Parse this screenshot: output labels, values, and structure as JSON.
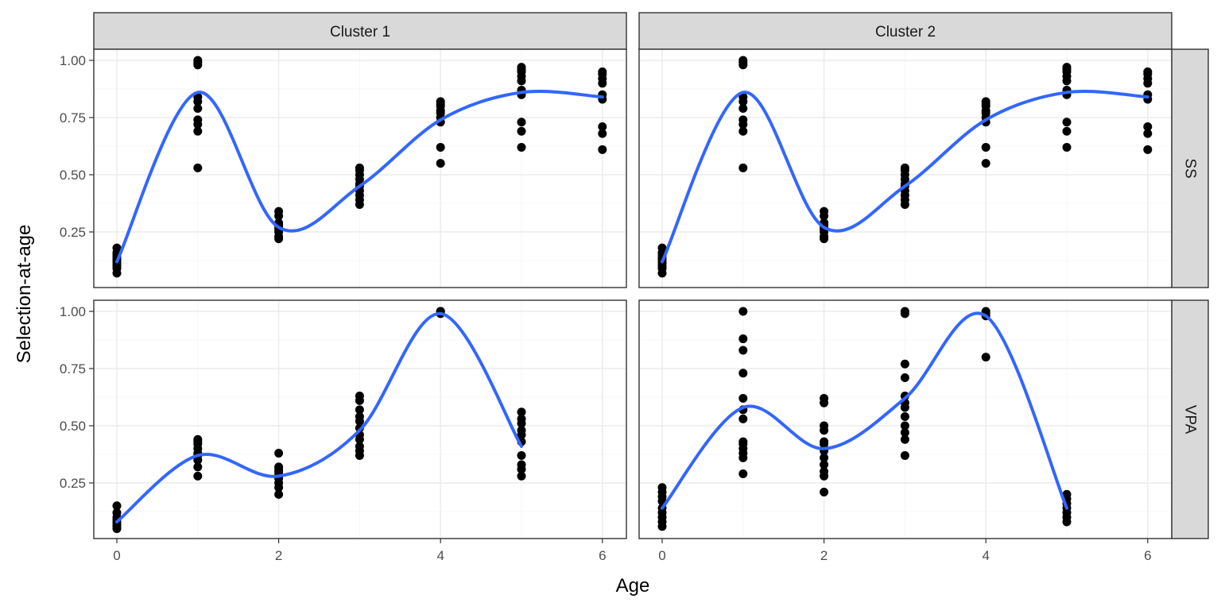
{
  "chart_data": {
    "type": "scatter",
    "xlabel": "Age",
    "ylabel": "Selection-at-age",
    "xlim": [
      0,
      6
    ],
    "ylim": [
      0.0,
      1.05
    ],
    "x_ticks": [
      0,
      2,
      4,
      6
    ],
    "y_ticks": [
      0.25,
      0.5,
      0.75,
      1.0
    ],
    "y_tick_labels": [
      "0.25",
      "0.50",
      "0.75",
      "1.00"
    ],
    "facet_columns": [
      "Cluster 1",
      "Cluster 2"
    ],
    "facet_rows": [
      "SS",
      "VPA"
    ],
    "grid": true,
    "colors": {
      "smooth_line": "#3366ff",
      "points": "#000000",
      "strip": "#d9d9d9"
    },
    "panels": [
      {
        "column": "Cluster 1",
        "row": "SS",
        "points": [
          [
            0,
            0.07
          ],
          [
            0,
            0.09
          ],
          [
            0,
            0.1
          ],
          [
            0,
            0.11
          ],
          [
            0,
            0.12
          ],
          [
            0,
            0.13
          ],
          [
            0,
            0.14
          ],
          [
            0,
            0.15
          ],
          [
            0,
            0.16
          ],
          [
            0,
            0.18
          ],
          [
            1,
            0.53
          ],
          [
            1,
            0.69
          ],
          [
            1,
            0.72
          ],
          [
            1,
            0.74
          ],
          [
            1,
            0.79
          ],
          [
            1,
            0.82
          ],
          [
            1,
            0.84
          ],
          [
            1,
            0.99
          ],
          [
            1,
            1.0
          ],
          [
            1,
            0.98
          ],
          [
            2,
            0.22
          ],
          [
            2,
            0.23
          ],
          [
            2,
            0.25
          ],
          [
            2,
            0.26
          ],
          [
            2,
            0.27
          ],
          [
            2,
            0.28
          ],
          [
            2,
            0.29
          ],
          [
            2,
            0.32
          ],
          [
            2,
            0.34
          ],
          [
            3,
            0.37
          ],
          [
            3,
            0.39
          ],
          [
            3,
            0.41
          ],
          [
            3,
            0.43
          ],
          [
            3,
            0.45
          ],
          [
            3,
            0.46
          ],
          [
            3,
            0.48
          ],
          [
            3,
            0.5
          ],
          [
            3,
            0.52
          ],
          [
            3,
            0.53
          ],
          [
            4,
            0.55
          ],
          [
            4,
            0.62
          ],
          [
            4,
            0.73
          ],
          [
            4,
            0.75
          ],
          [
            4,
            0.77
          ],
          [
            4,
            0.78
          ],
          [
            4,
            0.8
          ],
          [
            4,
            0.81
          ],
          [
            4,
            0.82
          ],
          [
            5,
            0.62
          ],
          [
            5,
            0.69
          ],
          [
            5,
            0.73
          ],
          [
            5,
            0.85
          ],
          [
            5,
            0.87
          ],
          [
            5,
            0.91
          ],
          [
            5,
            0.93
          ],
          [
            5,
            0.95
          ],
          [
            5,
            0.96
          ],
          [
            5,
            0.97
          ],
          [
            6,
            0.61
          ],
          [
            6,
            0.68
          ],
          [
            6,
            0.71
          ],
          [
            6,
            0.83
          ],
          [
            6,
            0.85
          ],
          [
            6,
            0.9
          ],
          [
            6,
            0.92
          ],
          [
            6,
            0.94
          ],
          [
            6,
            0.95
          ]
        ],
        "smooth": [
          [
            0,
            0.12
          ],
          [
            1,
            0.86
          ],
          [
            2,
            0.27
          ],
          [
            3,
            0.45
          ],
          [
            4,
            0.74
          ],
          [
            5,
            0.86
          ],
          [
            6,
            0.84
          ]
        ]
      },
      {
        "column": "Cluster 2",
        "row": "SS",
        "points": [
          [
            0,
            0.07
          ],
          [
            0,
            0.09
          ],
          [
            0,
            0.1
          ],
          [
            0,
            0.11
          ],
          [
            0,
            0.12
          ],
          [
            0,
            0.13
          ],
          [
            0,
            0.14
          ],
          [
            0,
            0.15
          ],
          [
            0,
            0.16
          ],
          [
            0,
            0.18
          ],
          [
            1,
            0.53
          ],
          [
            1,
            0.69
          ],
          [
            1,
            0.72
          ],
          [
            1,
            0.74
          ],
          [
            1,
            0.79
          ],
          [
            1,
            0.82
          ],
          [
            1,
            0.84
          ],
          [
            1,
            0.99
          ],
          [
            1,
            1.0
          ],
          [
            1,
            0.98
          ],
          [
            2,
            0.22
          ],
          [
            2,
            0.23
          ],
          [
            2,
            0.25
          ],
          [
            2,
            0.26
          ],
          [
            2,
            0.27
          ],
          [
            2,
            0.28
          ],
          [
            2,
            0.29
          ],
          [
            2,
            0.32
          ],
          [
            2,
            0.34
          ],
          [
            3,
            0.37
          ],
          [
            3,
            0.39
          ],
          [
            3,
            0.41
          ],
          [
            3,
            0.43
          ],
          [
            3,
            0.45
          ],
          [
            3,
            0.46
          ],
          [
            3,
            0.48
          ],
          [
            3,
            0.5
          ],
          [
            3,
            0.52
          ],
          [
            3,
            0.53
          ],
          [
            4,
            0.55
          ],
          [
            4,
            0.62
          ],
          [
            4,
            0.73
          ],
          [
            4,
            0.75
          ],
          [
            4,
            0.77
          ],
          [
            4,
            0.78
          ],
          [
            4,
            0.8
          ],
          [
            4,
            0.81
          ],
          [
            4,
            0.82
          ],
          [
            5,
            0.62
          ],
          [
            5,
            0.69
          ],
          [
            5,
            0.73
          ],
          [
            5,
            0.85
          ],
          [
            5,
            0.87
          ],
          [
            5,
            0.91
          ],
          [
            5,
            0.93
          ],
          [
            5,
            0.95
          ],
          [
            5,
            0.96
          ],
          [
            5,
            0.97
          ],
          [
            6,
            0.61
          ],
          [
            6,
            0.68
          ],
          [
            6,
            0.71
          ],
          [
            6,
            0.83
          ],
          [
            6,
            0.85
          ],
          [
            6,
            0.9
          ],
          [
            6,
            0.92
          ],
          [
            6,
            0.94
          ],
          [
            6,
            0.95
          ]
        ],
        "smooth": [
          [
            0,
            0.12
          ],
          [
            1,
            0.86
          ],
          [
            2,
            0.27
          ],
          [
            3,
            0.45
          ],
          [
            4,
            0.74
          ],
          [
            5,
            0.86
          ],
          [
            6,
            0.84
          ]
        ]
      },
      {
        "column": "Cluster 1",
        "row": "VPA",
        "points": [
          [
            0,
            0.05
          ],
          [
            0,
            0.06
          ],
          [
            0,
            0.07
          ],
          [
            0,
            0.08
          ],
          [
            0,
            0.09
          ],
          [
            0,
            0.1
          ],
          [
            0,
            0.12
          ],
          [
            0,
            0.15
          ],
          [
            1,
            0.28
          ],
          [
            1,
            0.32
          ],
          [
            1,
            0.35
          ],
          [
            1,
            0.37
          ],
          [
            1,
            0.38
          ],
          [
            1,
            0.4
          ],
          [
            1,
            0.42
          ],
          [
            1,
            0.43
          ],
          [
            1,
            0.44
          ],
          [
            2,
            0.2
          ],
          [
            2,
            0.23
          ],
          [
            2,
            0.25
          ],
          [
            2,
            0.27
          ],
          [
            2,
            0.28
          ],
          [
            2,
            0.29
          ],
          [
            2,
            0.3
          ],
          [
            2,
            0.31
          ],
          [
            2,
            0.32
          ],
          [
            2,
            0.38
          ],
          [
            3,
            0.37
          ],
          [
            3,
            0.39
          ],
          [
            3,
            0.41
          ],
          [
            3,
            0.44
          ],
          [
            3,
            0.46
          ],
          [
            3,
            0.49
          ],
          [
            3,
            0.52
          ],
          [
            3,
            0.54
          ],
          [
            3,
            0.57
          ],
          [
            3,
            0.61
          ],
          [
            3,
            0.63
          ],
          [
            4,
            1.0
          ],
          [
            4,
            1.0
          ],
          [
            4,
            0.99
          ],
          [
            4,
            1.0
          ],
          [
            5,
            0.28
          ],
          [
            5,
            0.31
          ],
          [
            5,
            0.33
          ],
          [
            5,
            0.37
          ],
          [
            5,
            0.43
          ],
          [
            5,
            0.46
          ],
          [
            5,
            0.48
          ],
          [
            5,
            0.51
          ],
          [
            5,
            0.53
          ],
          [
            5,
            0.56
          ]
        ],
        "smooth": [
          [
            0,
            0.08
          ],
          [
            1,
            0.37
          ],
          [
            2,
            0.28
          ],
          [
            3,
            0.48
          ],
          [
            4,
            0.99
          ],
          [
            5,
            0.41
          ]
        ]
      },
      {
        "column": "Cluster 2",
        "row": "VPA",
        "points": [
          [
            0,
            0.06
          ],
          [
            0,
            0.08
          ],
          [
            0,
            0.1
          ],
          [
            0,
            0.12
          ],
          [
            0,
            0.14
          ],
          [
            0,
            0.17
          ],
          [
            0,
            0.19
          ],
          [
            0,
            0.21
          ],
          [
            0,
            0.23
          ],
          [
            1,
            0.29
          ],
          [
            1,
            0.36
          ],
          [
            1,
            0.38
          ],
          [
            1,
            0.4
          ],
          [
            1,
            0.42
          ],
          [
            1,
            0.43
          ],
          [
            1,
            0.53
          ],
          [
            1,
            0.57
          ],
          [
            1,
            0.62
          ],
          [
            1,
            0.73
          ],
          [
            1,
            0.83
          ],
          [
            1,
            0.88
          ],
          [
            1,
            1.0
          ],
          [
            2,
            0.21
          ],
          [
            2,
            0.28
          ],
          [
            2,
            0.3
          ],
          [
            2,
            0.33
          ],
          [
            2,
            0.36
          ],
          [
            2,
            0.39
          ],
          [
            2,
            0.42
          ],
          [
            2,
            0.43
          ],
          [
            2,
            0.48
          ],
          [
            2,
            0.5
          ],
          [
            2,
            0.6
          ],
          [
            2,
            0.62
          ],
          [
            3,
            0.37
          ],
          [
            3,
            0.44
          ],
          [
            3,
            0.47
          ],
          [
            3,
            0.5
          ],
          [
            3,
            0.54
          ],
          [
            3,
            0.58
          ],
          [
            3,
            0.6
          ],
          [
            3,
            0.63
          ],
          [
            3,
            0.71
          ],
          [
            3,
            0.77
          ],
          [
            3,
            0.99
          ],
          [
            3,
            1.0
          ],
          [
            4,
            0.8
          ],
          [
            4,
            0.98
          ],
          [
            4,
            0.99
          ],
          [
            4,
            1.0
          ],
          [
            5,
            0.08
          ],
          [
            5,
            0.1
          ],
          [
            5,
            0.12
          ],
          [
            5,
            0.14
          ],
          [
            5,
            0.16
          ],
          [
            5,
            0.18
          ],
          [
            5,
            0.2
          ]
        ],
        "smooth": [
          [
            0,
            0.14
          ],
          [
            1,
            0.58
          ],
          [
            2,
            0.4
          ],
          [
            3,
            0.62
          ],
          [
            4,
            0.98
          ],
          [
            5,
            0.14
          ]
        ]
      }
    ]
  }
}
